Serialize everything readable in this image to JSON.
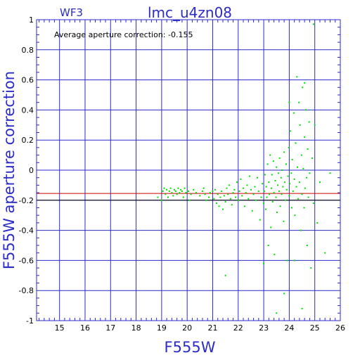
{
  "chart_data": {
    "type": "scatter",
    "title": "lmc_u4zn08",
    "corner_label": "WF3",
    "annotation": "Average aperture correction:  -0.155",
    "xlabel": "F555W",
    "ylabel": "F555W  aperture  correction",
    "xlim": [
      14.1,
      26
    ],
    "ylim": [
      -1,
      1
    ],
    "xticks": [
      "15",
      "16",
      "17",
      "18",
      "19",
      "20",
      "21",
      "22",
      "23",
      "24",
      "25",
      "26"
    ],
    "yticks": [
      "-1",
      "-0.8",
      "-0.6",
      "-0.4",
      "-0.2",
      "0",
      "0.2",
      "0.4",
      "0.6",
      "0.8",
      "1"
    ],
    "grid": true,
    "average_line": -0.155,
    "reference_line": -0.2,
    "colors": {
      "frame": "#2b2bc8",
      "grid": "#2b2bc8",
      "points": "#00e000",
      "average_line": "#cc0000",
      "reference_line": "#000000",
      "text": "#2b2bc8"
    },
    "points": [
      [
        18.85,
        -0.18
      ],
      [
        19.0,
        -0.2
      ],
      [
        19.05,
        -0.14
      ],
      [
        19.1,
        -0.12
      ],
      [
        19.15,
        -0.16
      ],
      [
        19.2,
        -0.13
      ],
      [
        19.25,
        -0.18
      ],
      [
        19.3,
        -0.14
      ],
      [
        19.35,
        -0.12
      ],
      [
        19.4,
        -0.15
      ],
      [
        19.45,
        -0.17
      ],
      [
        19.5,
        -0.13
      ],
      [
        19.55,
        -0.14
      ],
      [
        19.6,
        -0.16
      ],
      [
        19.65,
        -0.12
      ],
      [
        19.7,
        -0.15
      ],
      [
        19.75,
        -0.13
      ],
      [
        19.8,
        -0.14
      ],
      [
        19.85,
        -0.18
      ],
      [
        19.9,
        -0.12
      ],
      [
        19.95,
        -0.15
      ],
      [
        20.05,
        -0.14
      ],
      [
        20.1,
        -0.2
      ],
      [
        20.15,
        -0.16
      ],
      [
        20.25,
        -0.13
      ],
      [
        20.35,
        -0.15
      ],
      [
        20.5,
        -0.17
      ],
      [
        20.6,
        -0.14
      ],
      [
        20.65,
        -0.12
      ],
      [
        20.7,
        -0.16
      ],
      [
        20.75,
        -0.2
      ],
      [
        20.85,
        -0.18
      ],
      [
        20.9,
        -0.15
      ],
      [
        21.0,
        -0.14
      ],
      [
        21.05,
        -0.19
      ],
      [
        21.1,
        -0.13
      ],
      [
        21.15,
        -0.22
      ],
      [
        21.2,
        -0.16
      ],
      [
        21.25,
        -0.24
      ],
      [
        21.3,
        -0.18
      ],
      [
        21.35,
        -0.14
      ],
      [
        21.4,
        -0.26
      ],
      [
        21.45,
        -0.17
      ],
      [
        21.5,
        -0.21
      ],
      [
        21.55,
        -0.12
      ],
      [
        21.6,
        -0.16
      ],
      [
        21.65,
        -0.1
      ],
      [
        21.7,
        -0.19
      ],
      [
        21.75,
        -0.23
      ],
      [
        21.8,
        -0.15
      ],
      [
        21.85,
        -0.13
      ],
      [
        21.9,
        -0.18
      ],
      [
        21.95,
        -0.08
      ],
      [
        22.0,
        -0.2
      ],
      [
        22.05,
        -0.14
      ],
      [
        22.1,
        -0.06
      ],
      [
        22.15,
        -0.17
      ],
      [
        22.2,
        -0.12
      ],
      [
        22.25,
        -0.24
      ],
      [
        22.3,
        -0.15
      ],
      [
        22.35,
        -0.1
      ],
      [
        22.4,
        -0.19
      ],
      [
        22.45,
        -0.04
      ],
      [
        22.5,
        -0.13
      ],
      [
        22.55,
        -0.27
      ],
      [
        22.6,
        -0.16
      ],
      [
        22.65,
        -0.11
      ],
      [
        22.7,
        -0.2
      ],
      [
        22.75,
        -0.05
      ],
      [
        22.8,
        -0.14
      ],
      [
        22.85,
        -0.33
      ],
      [
        22.9,
        -0.18
      ],
      [
        22.95,
        -0.09
      ],
      [
        23.0,
        -0.22
      ],
      [
        23.02,
        -0.14
      ],
      [
        23.05,
        -0.03
      ],
      [
        23.08,
        -0.26
      ],
      [
        23.1,
        -0.11
      ],
      [
        23.12,
        -0.18
      ],
      [
        23.15,
        0.04
      ],
      [
        23.18,
        -0.5
      ],
      [
        23.2,
        -0.08
      ],
      [
        23.22,
        -0.16
      ],
      [
        23.25,
        0.1
      ],
      [
        23.28,
        -0.38
      ],
      [
        23.3,
        -0.12
      ],
      [
        23.32,
        -0.03
      ],
      [
        23.35,
        -0.21
      ],
      [
        23.38,
        0.06
      ],
      [
        23.4,
        -0.15
      ],
      [
        23.42,
        -0.56
      ],
      [
        23.45,
        -0.07
      ],
      [
        23.48,
        -0.18
      ],
      [
        23.5,
        0.02
      ],
      [
        23.52,
        -0.28
      ],
      [
        23.55,
        -0.1
      ],
      [
        23.58,
        -0.02
      ],
      [
        23.6,
        -0.14
      ],
      [
        23.62,
        0.08
      ],
      [
        23.65,
        -0.24
      ],
      [
        23.68,
        -0.05
      ],
      [
        23.7,
        -0.16
      ],
      [
        23.72,
        0.0
      ],
      [
        23.75,
        -0.11
      ],
      [
        23.78,
        -0.34
      ],
      [
        23.8,
        0.12
      ],
      [
        23.82,
        -0.08
      ],
      [
        23.85,
        -0.2
      ],
      [
        23.88,
        0.04
      ],
      [
        23.9,
        -0.13
      ],
      [
        23.92,
        -0.6
      ],
      [
        23.95,
        -0.04
      ],
      [
        23.98,
        0.15
      ],
      [
        24.0,
        -0.17
      ],
      [
        24.02,
        -0.09
      ],
      [
        24.05,
        0.26
      ],
      [
        24.08,
        -0.02
      ],
      [
        24.1,
        -0.25
      ],
      [
        24.12,
        0.07
      ],
      [
        24.15,
        -0.14
      ],
      [
        24.18,
        0.38
      ],
      [
        24.2,
        -0.06
      ],
      [
        24.22,
        -0.3
      ],
      [
        24.25,
        0.18
      ],
      [
        24.28,
        -0.11
      ],
      [
        24.3,
        0.62
      ],
      [
        24.32,
        0.02
      ],
      [
        24.35,
        -0.19
      ],
      [
        24.38,
        0.45
      ],
      [
        24.4,
        -0.08
      ],
      [
        24.42,
        0.3
      ],
      [
        24.45,
        -0.4
      ],
      [
        24.48,
        0.1
      ],
      [
        24.5,
        -0.16
      ],
      [
        24.52,
        0.55
      ],
      [
        24.55,
        0.01
      ],
      [
        24.58,
        -0.25
      ],
      [
        24.6,
        0.22
      ],
      [
        24.62,
        -0.12
      ],
      [
        24.65,
        0.4
      ],
      [
        24.68,
        -0.05
      ],
      [
        24.7,
        -0.5
      ],
      [
        24.72,
        0.14
      ],
      [
        24.75,
        -0.18
      ],
      [
        24.78,
        0.32
      ],
      [
        24.8,
        -0.02
      ],
      [
        24.85,
        -0.65
      ],
      [
        24.9,
        0.08
      ],
      [
        24.95,
        -0.22
      ],
      [
        25.0,
        0.3
      ],
      [
        25.1,
        -0.35
      ],
      [
        25.2,
        -0.08
      ],
      [
        25.4,
        -0.55
      ],
      [
        25.6,
        -0.02
      ],
      [
        21.5,
        -0.7
      ],
      [
        23.5,
        -0.95
      ],
      [
        24.5,
        -0.92
      ],
      [
        24.95,
        0.97
      ],
      [
        24.0,
        0.45
      ],
      [
        23.8,
        -0.82
      ],
      [
        24.2,
        -0.6
      ],
      [
        23.0,
        -0.62
      ],
      [
        24.6,
        0.58
      ]
    ]
  }
}
